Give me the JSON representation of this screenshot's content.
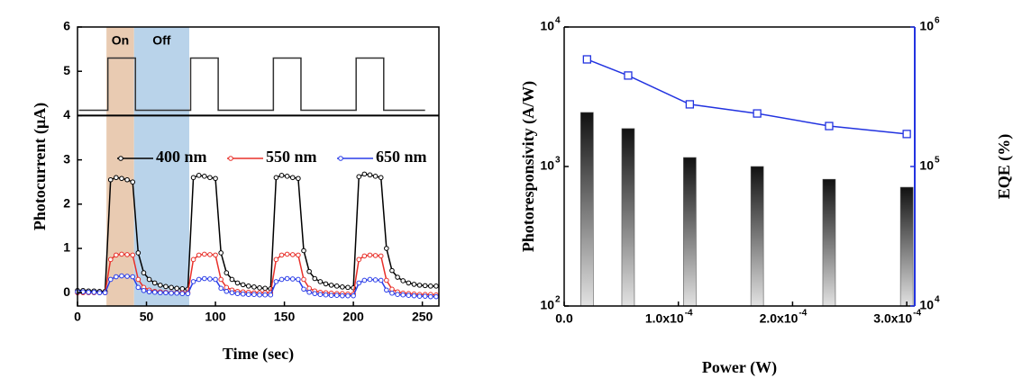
{
  "chart_data": [
    {
      "type": "line",
      "xlabel": "Time (sec)",
      "ylabel": "Photocurrent (μA)",
      "xlim": [
        0,
        262
      ],
      "ylim": [
        -0.3,
        6
      ],
      "xticks": [
        0,
        50,
        100,
        150,
        200,
        250
      ],
      "yticks": [
        0,
        1,
        2,
        3,
        4,
        5,
        6
      ],
      "spans": [
        {
          "label": "On",
          "x": [
            21,
            41
          ],
          "color": "#e9cbb2"
        },
        {
          "label": "Off",
          "x": [
            41,
            81
          ],
          "color": "#b9d3ea"
        }
      ],
      "break_line": 4,
      "square_wave": {
        "color": "#333333",
        "x": [
          1,
          22,
          22,
          42,
          42,
          82,
          82,
          102,
          102,
          142,
          142,
          162,
          162,
          202,
          202,
          222,
          222,
          252
        ],
        "values": [
          4.12,
          4.12,
          5.3,
          5.3,
          4.12,
          4.12,
          5.3,
          5.3,
          4.12,
          4.12,
          5.3,
          5.3,
          4.12,
          4.12,
          5.3,
          5.3,
          4.12,
          4.12
        ]
      },
      "x": [
        0,
        4,
        8,
        12,
        16,
        20,
        24,
        28,
        32,
        36,
        40,
        44,
        48,
        52,
        56,
        60,
        64,
        68,
        72,
        76,
        80,
        84,
        88,
        92,
        96,
        100,
        104,
        108,
        112,
        116,
        120,
        124,
        128,
        132,
        136,
        140,
        144,
        148,
        152,
        156,
        160,
        164,
        168,
        172,
        176,
        180,
        184,
        188,
        192,
        196,
        200,
        204,
        208,
        212,
        216,
        220,
        224,
        228,
        232,
        236,
        240,
        244,
        248,
        252,
        256,
        260
      ],
      "series": [
        {
          "name": "400 nm",
          "color": "#000000",
          "values": [
            0.05,
            0.05,
            0.04,
            0.04,
            0.03,
            0.03,
            2.55,
            2.6,
            2.58,
            2.55,
            2.5,
            0.9,
            0.45,
            0.3,
            0.22,
            0.17,
            0.14,
            0.12,
            0.1,
            0.09,
            0.08,
            2.6,
            2.65,
            2.63,
            2.6,
            2.58,
            0.9,
            0.45,
            0.3,
            0.22,
            0.18,
            0.15,
            0.13,
            0.11,
            0.1,
            0.09,
            2.6,
            2.65,
            2.63,
            2.6,
            2.58,
            0.95,
            0.48,
            0.32,
            0.25,
            0.2,
            0.17,
            0.15,
            0.13,
            0.12,
            0.11,
            2.62,
            2.68,
            2.66,
            2.63,
            2.6,
            1.0,
            0.5,
            0.35,
            0.27,
            0.22,
            0.19,
            0.17,
            0.16,
            0.15,
            0.15
          ]
        },
        {
          "name": "550 nm",
          "color": "#e8302a",
          "values": [
            0,
            0,
            0,
            0,
            0,
            0,
            0.75,
            0.85,
            0.87,
            0.86,
            0.85,
            0.3,
            0.12,
            0.06,
            0.03,
            0.02,
            0.01,
            0,
            0,
            0,
            0,
            0.75,
            0.85,
            0.87,
            0.86,
            0.85,
            0.3,
            0.12,
            0.06,
            0.03,
            0.02,
            0.01,
            0,
            0,
            0,
            0,
            0.75,
            0.85,
            0.87,
            0.86,
            0.85,
            0.3,
            0.1,
            0.04,
            0.01,
            0,
            -0.01,
            -0.02,
            -0.02,
            -0.03,
            -0.03,
            0.75,
            0.83,
            0.85,
            0.84,
            0.83,
            0.28,
            0.08,
            0.02,
            -0.01,
            -0.02,
            -0.03,
            -0.04,
            -0.04,
            -0.04,
            -0.05
          ]
        },
        {
          "name": "650 nm",
          "color": "#2a3de8",
          "values": [
            0.02,
            0.02,
            0.01,
            0.01,
            0,
            0,
            0.3,
            0.36,
            0.38,
            0.37,
            0.36,
            0.12,
            0.05,
            0.02,
            0.01,
            0,
            0,
            -0.01,
            -0.01,
            -0.02,
            -0.02,
            0.25,
            0.3,
            0.32,
            0.31,
            0.3,
            0.1,
            0.03,
            0,
            -0.02,
            -0.03,
            -0.04,
            -0.04,
            -0.05,
            -0.05,
            -0.05,
            0.25,
            0.3,
            0.32,
            0.31,
            0.3,
            0.08,
            0.01,
            -0.02,
            -0.04,
            -0.05,
            -0.06,
            -0.06,
            -0.07,
            -0.07,
            -0.07,
            0.22,
            0.28,
            0.3,
            0.29,
            0.28,
            0.06,
            -0.01,
            -0.04,
            -0.05,
            -0.06,
            -0.07,
            -0.08,
            -0.08,
            -0.09,
            -0.09
          ]
        }
      ]
    },
    {
      "type": "bar",
      "xlabel": "Power (W)",
      "ylabel": "Photoresponsivity (A/W)",
      "y2label": "EQE (%)",
      "log_y": true,
      "xlim": [
        0,
        0.000307
      ],
      "ylim": [
        100,
        10000
      ],
      "y2lim": [
        10000,
        1000000
      ],
      "xticks": [
        {
          "value": 0,
          "label": "0.0"
        },
        {
          "value": 0.0001,
          "label": "1.0x10",
          "exponent": "-4"
        },
        {
          "value": 0.0002,
          "label": "2.0x10",
          "exponent": "-4"
        },
        {
          "value": 0.0003,
          "label": "3.0x10",
          "exponent": "-4"
        }
      ],
      "yticks": [
        {
          "value": 100,
          "label": "10",
          "exponent": "2"
        },
        {
          "value": 1000,
          "label": "10",
          "exponent": "3"
        },
        {
          "value": 10000,
          "label": "10",
          "exponent": "4"
        }
      ],
      "y2ticks": [
        {
          "value": 10000,
          "label": "10",
          "exponent": "4"
        },
        {
          "value": 100000,
          "label": "10",
          "exponent": "5"
        },
        {
          "value": 1000000,
          "label": "10",
          "exponent": "6"
        }
      ],
      "x": [
        2e-05,
        5.6e-05,
        0.00011,
        0.000169,
        0.000232,
        0.0003
      ],
      "values": [
        2440,
        1870,
        1160,
        1000,
        810,
        710
      ],
      "bar_gradient": [
        "#111111",
        "#e2e2e2"
      ],
      "line": {
        "axis": "y2",
        "color": "#2233e0",
        "values": [
          586000,
          449000,
          279000,
          240000,
          195000,
          171000
        ]
      }
    }
  ]
}
